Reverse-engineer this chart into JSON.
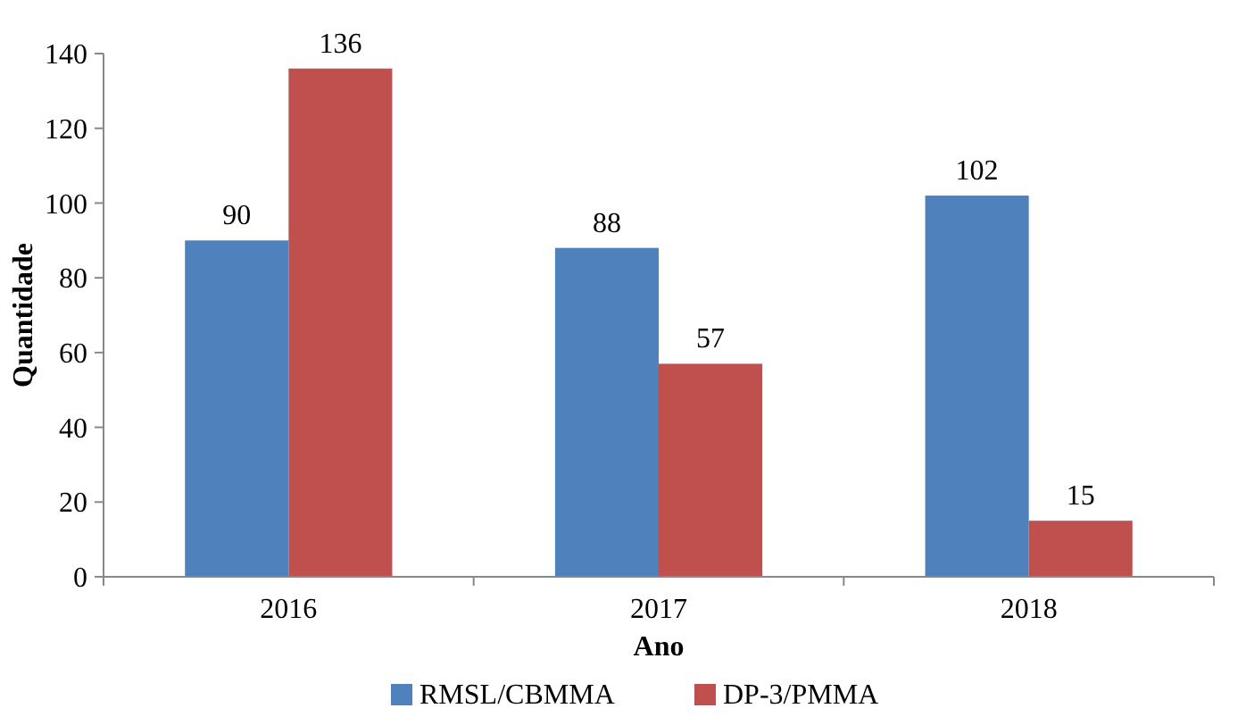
{
  "chart_data": {
    "type": "bar",
    "xlabel": "Ano",
    "ylabel": "Quantidade",
    "categories": [
      "2016",
      "2017",
      "2018"
    ],
    "series": [
      {
        "name": "RMSL/CBMMA",
        "color": "#4f81bd",
        "values": [
          90,
          88,
          102
        ]
      },
      {
        "name": "DP-3/PMMA",
        "color": "#c0504d",
        "values": [
          136,
          57,
          15
        ]
      }
    ],
    "ylim": [
      0,
      140
    ],
    "yticks": [
      0,
      20,
      40,
      60,
      80,
      100,
      120,
      140
    ],
    "grid": false,
    "legend": "bottom",
    "data_labels": true
  }
}
